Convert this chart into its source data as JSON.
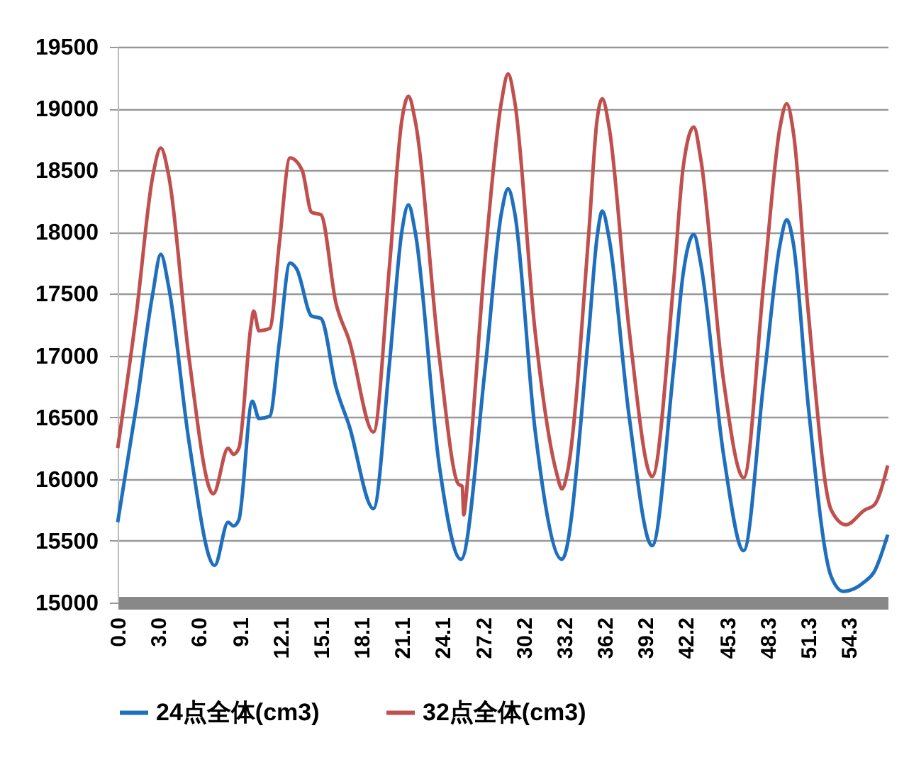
{
  "chart_data": {
    "type": "line",
    "xlim": [
      0,
      57.2
    ],
    "ylim": [
      15000,
      19500
    ],
    "xticks": [
      {
        "value": 0,
        "label": "0.0"
      },
      {
        "value": 3,
        "label": "3.0"
      },
      {
        "value": 6,
        "label": "6.0"
      },
      9.1,
      12.1,
      15.1,
      18.1,
      21.1,
      24.1,
      27.2,
      30.2,
      33.2,
      36.2,
      39.2,
      42.2,
      45.3,
      48.3,
      51.3,
      54.3
    ],
    "yticks": [
      15000,
      15500,
      16000,
      16500,
      17000,
      17500,
      18000,
      18500,
      19000,
      19500
    ],
    "grid": "y",
    "legend": "bottom",
    "line_style": "solid",
    "series": [
      {
        "name": "24点全体(cm3)",
        "color": "#1f6fbf",
        "x": [
          0,
          1.4,
          2.6,
          3.2,
          3.8,
          5.3,
          7.2,
          8.2,
          8.6,
          9.0,
          10.0,
          10.5,
          11.3,
          12.0,
          12.8,
          13.3,
          14.4,
          15.1,
          16.2,
          17.2,
          19.0,
          20.2,
          21.1,
          21.6,
          22.1,
          23.9,
          25.5,
          27.3,
          28.5,
          29.0,
          29.5,
          31.0,
          33.0,
          35.0,
          35.6,
          36.0,
          36.5,
          38.0,
          39.7,
          41.3,
          42.0,
          42.8,
          43.3,
          45.0,
          46.5,
          48.0,
          49.2,
          49.7,
          50.2,
          51.3,
          53.0,
          53.9,
          55.5,
          56.2,
          57.2
        ],
        "values": [
          15650,
          16600,
          17500,
          17820,
          17550,
          16300,
          15300,
          15650,
          15620,
          15670,
          16630,
          16490,
          16510,
          17100,
          17750,
          17700,
          17320,
          17300,
          16750,
          16430,
          15760,
          16950,
          18000,
          18220,
          18000,
          16100,
          15350,
          16900,
          18150,
          18350,
          18150,
          16400,
          15350,
          17200,
          17950,
          18170,
          17950,
          16500,
          15460,
          16900,
          17660,
          17980,
          17750,
          16200,
          15420,
          16800,
          17900,
          18100,
          17900,
          16590,
          15210,
          15090,
          15170,
          15250,
          15550
        ]
      },
      {
        "name": "32点全体(cm3)",
        "color": "#c0504d",
        "x": [
          0,
          1.4,
          2.6,
          3.2,
          3.8,
          5.3,
          7.1,
          8.2,
          8.6,
          9.0,
          9.9,
          10.1,
          10.5,
          11.3,
          12.0,
          12.8,
          13.7,
          14.4,
          15.1,
          16.2,
          17.2,
          19.0,
          20.2,
          21.1,
          21.6,
          22.1,
          23.9,
          25.3,
          25.6,
          25.7,
          26.0,
          27.3,
          28.5,
          29.0,
          29.5,
          31.0,
          32.6,
          33.0,
          33.4,
          35.0,
          35.6,
          36.0,
          36.5,
          38.0,
          39.7,
          41.3,
          42.0,
          42.8,
          43.3,
          45.0,
          46.5,
          48.0,
          49.2,
          49.7,
          50.2,
          51.3,
          53.0,
          54.1,
          55.5,
          56.2,
          57.2
        ],
        "values": [
          16250,
          17350,
          18450,
          18680,
          18450,
          16980,
          15880,
          16250,
          16200,
          16250,
          17240,
          17360,
          17200,
          17220,
          17900,
          18600,
          18500,
          18160,
          18140,
          17430,
          17120,
          16380,
          17740,
          18900,
          19100,
          18900,
          16980,
          15960,
          15940,
          15710,
          16000,
          17800,
          19050,
          19280,
          19050,
          17200,
          16050,
          15920,
          16050,
          18000,
          18900,
          19080,
          18850,
          17200,
          16020,
          17600,
          18520,
          18850,
          18600,
          16800,
          16010,
          17600,
          18850,
          19040,
          18800,
          17350,
          15750,
          15630,
          15750,
          15790,
          16110
        ]
      }
    ]
  }
}
